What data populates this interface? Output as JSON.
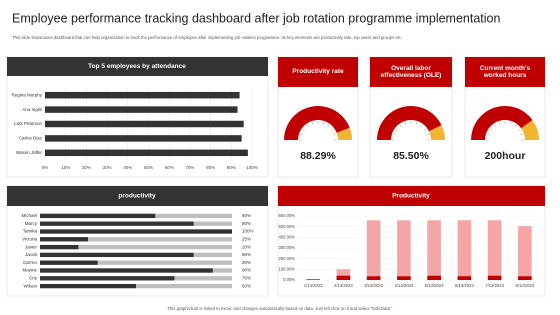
{
  "title": "Employee performance tracking dashboard after job rotation programme implementation",
  "subtitle": "This slide showcases dashboard that can help organization to track the performance of employee after implementing job rotation programme. Its key elements are productivity rate, top users and groups etc.",
  "footer": "This graph/chart is linked to excel, and changes automatically based on data. Just left click on it and select \"Edit Data\".",
  "chart_data": [
    {
      "type": "barh",
      "title": "Top 5 employees by attendance",
      "categories": [
        "Regina Murphy",
        "Ana Inglis",
        "Lark Peterson",
        "Carlos Diaz",
        "Wasim Jaffer"
      ],
      "values": [
        94,
        93,
        96,
        95,
        98
      ],
      "color": "#333333",
      "xlim": [
        0,
        100
      ],
      "xticks": [
        {
          "value": 0,
          "label": "0%"
        },
        {
          "value": 10,
          "label": "10%"
        },
        {
          "value": 20,
          "label": "20%"
        },
        {
          "value": 30,
          "label": "30%"
        },
        {
          "value": 40,
          "label": "40%"
        },
        {
          "value": 50,
          "label": "50%"
        },
        {
          "value": 60,
          "label": "60%"
        },
        {
          "value": 70,
          "label": "70%"
        },
        {
          "value": 80,
          "label": "80%"
        },
        {
          "value": 90,
          "label": "90%"
        },
        {
          "value": 100,
          "label": "100%"
        }
      ],
      "grid": true
    },
    {
      "type": "gauge",
      "title": "Productivity rate",
      "value": 88.29,
      "value_label": "88.29%",
      "ylim": [
        0,
        100
      ],
      "color": "#c00000",
      "rest_color": "#f2b631"
    },
    {
      "type": "gauge",
      "title": "Overall labor effectiveness (OLE)",
      "value": 85.5,
      "value_label": "85.50%",
      "ylim": [
        0,
        100
      ],
      "color": "#c00000",
      "rest_color": "#f2b631"
    },
    {
      "type": "gauge",
      "title": "Current month's worked hours",
      "value": 200,
      "value_label": "200hour",
      "ylim": [
        0,
        250
      ],
      "color": "#c00000",
      "rest_color": "#f2b631"
    },
    {
      "type": "barh",
      "title": "productivity",
      "categories": [
        "Michael",
        "Marcy",
        "Tamika",
        "Victoria",
        "Javier",
        "Jacob",
        "Darren",
        "Maxine",
        "Cris",
        "Wilson"
      ],
      "values": [
        60,
        80,
        100,
        25,
        20,
        80,
        30,
        90,
        70,
        50
      ],
      "value_labels": [
        "60%",
        "80%",
        "100%",
        "25%",
        "20%",
        "80%",
        "30%",
        "90%",
        "70%",
        "50%"
      ],
      "xlim": [
        0,
        100
      ],
      "color": "#333333",
      "track_color": "#bfbfbf"
    },
    {
      "type": "bar",
      "title": "Productivity",
      "categories": [
        "1/13/2023",
        "2/13/2023",
        "3/13/2023",
        "4/13/2023",
        "5/13/2023",
        "6/13/2023",
        "7/13/2023",
        "8/13/2023"
      ],
      "series": [
        {
          "color": "#f4a6a6",
          "values": [
            10,
            100,
            560,
            560,
            560,
            560,
            560,
            505
          ]
        },
        {
          "color": "#c00000",
          "values": [
            5,
            40,
            35,
            35,
            40,
            35,
            40,
            35
          ]
        }
      ],
      "ylim": [
        0,
        600
      ],
      "yticks": [
        {
          "value": 0,
          "label": "0.00%"
        },
        {
          "value": 100,
          "label": "100.00%"
        },
        {
          "value": 200,
          "label": "200.00%"
        },
        {
          "value": 300,
          "label": "300.00%"
        },
        {
          "value": 400,
          "label": "400.00%"
        },
        {
          "value": 500,
          "label": "500.00%"
        },
        {
          "value": 600,
          "label": "600.00%"
        }
      ],
      "grid": true
    }
  ]
}
